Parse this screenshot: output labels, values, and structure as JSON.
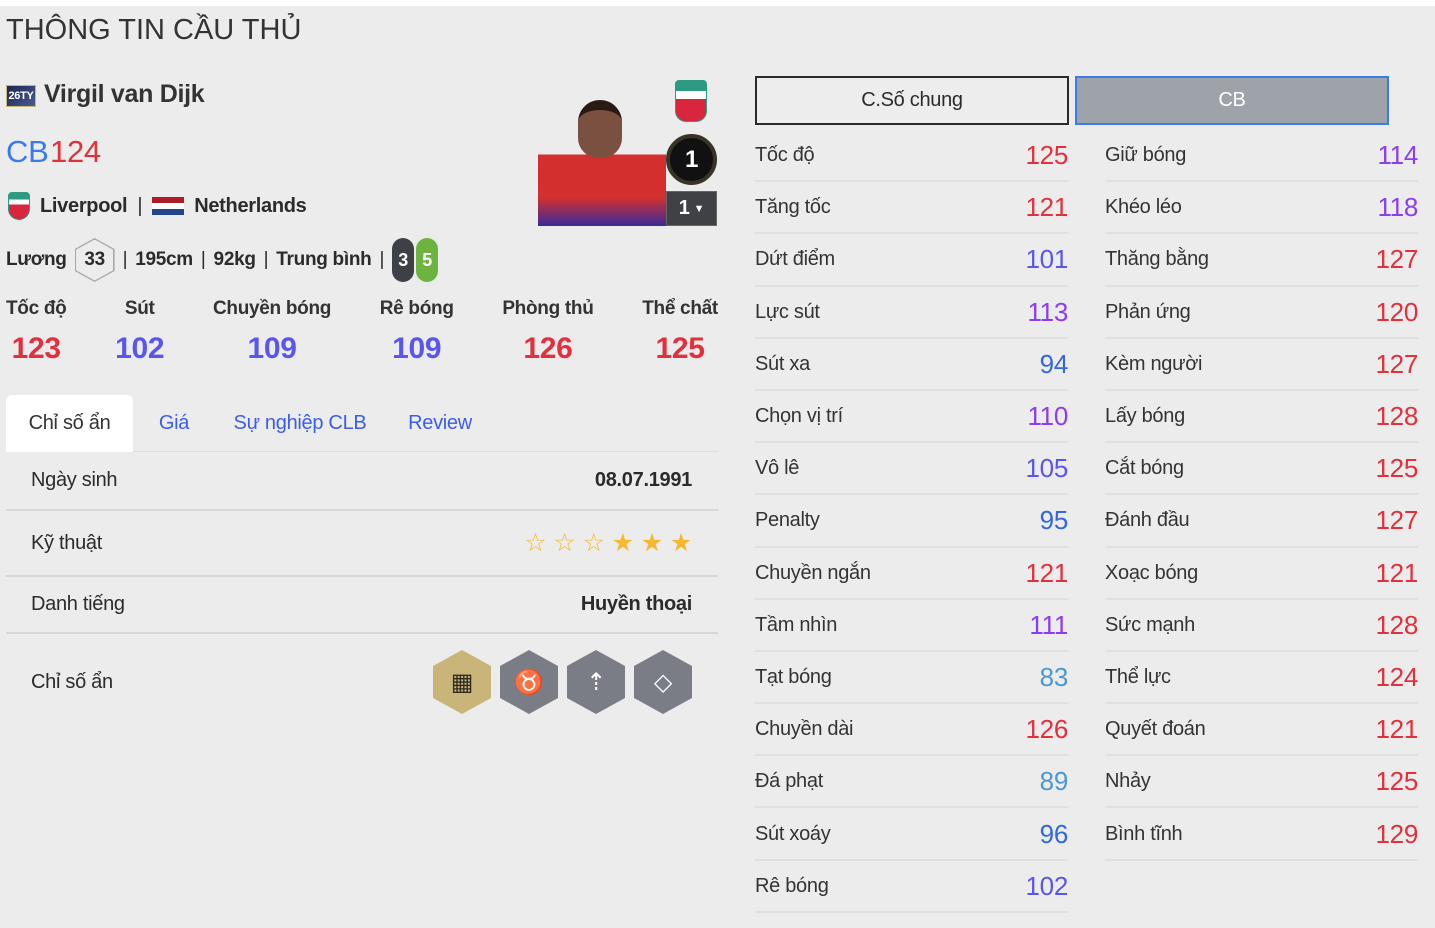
{
  "page_title": "THÔNG TIN CẦU THỦ",
  "player": {
    "season": "26TY",
    "name": "Virgil van Dijk",
    "position": "CB",
    "ovr": "124",
    "club": "Liverpool",
    "nation": "Netherlands",
    "sep": "|",
    "salary_label": "Lương",
    "salary": "33",
    "height": "195cm",
    "weight": "92kg",
    "body_type": "Trung bình",
    "left_foot": "3",
    "right_foot": "5",
    "upgrade_level": "1",
    "level_select": "1"
  },
  "summary": [
    {
      "label": "Tốc độ",
      "value": 123
    },
    {
      "label": "Sút",
      "value": 102
    },
    {
      "label": "Chuyền bóng",
      "value": 109
    },
    {
      "label": "Rê bóng",
      "value": 109
    },
    {
      "label": "Phòng thủ",
      "value": 126
    },
    {
      "label": "Thể chất",
      "value": 125
    }
  ],
  "tabs": [
    "Chỉ số ẩn",
    "Giá",
    "Sự nghiệp CLB",
    "Review"
  ],
  "info": {
    "birth_label": "Ngày sinh",
    "birth": "08.07.1991",
    "skill_label": "Kỹ thuật",
    "skill_stars": 3,
    "skill_max": 6,
    "rep_label": "Danh tiếng",
    "rep": "Huyền thoại",
    "traits_label": "Chỉ số ẩn",
    "traits": [
      {
        "icon": "brick-wall-icon",
        "color": "#c9b57a"
      },
      {
        "icon": "bull-icon",
        "color": "#7a7d85"
      },
      {
        "icon": "long-throw-icon",
        "color": "#7a7d85"
      },
      {
        "icon": "diamond-icon",
        "color": "#7a7d85"
      }
    ]
  },
  "stat_tabs": {
    "general": "C.Số chung",
    "position": "CB"
  },
  "stats_left": [
    {
      "label": "Tốc độ",
      "value": 125
    },
    {
      "label": "Tăng tốc",
      "value": 121
    },
    {
      "label": "Dứt điểm",
      "value": 101
    },
    {
      "label": "Lực sút",
      "value": 113
    },
    {
      "label": "Sút xa",
      "value": 94
    },
    {
      "label": "Chọn vị trí",
      "value": 110
    },
    {
      "label": "Vô lê",
      "value": 105
    },
    {
      "label": "Penalty",
      "value": 95
    },
    {
      "label": "Chuyền ngắn",
      "value": 121
    },
    {
      "label": "Tầm nhìn",
      "value": 111
    },
    {
      "label": "Tạt bóng",
      "value": 83
    },
    {
      "label": "Chuyền dài",
      "value": 126
    },
    {
      "label": "Đá phạt",
      "value": 89
    },
    {
      "label": "Sút xoáy",
      "value": 96
    },
    {
      "label": "Rê bóng",
      "value": 102
    }
  ],
  "stats_right": [
    {
      "label": "Giữ bóng",
      "value": 114
    },
    {
      "label": "Khéo léo",
      "value": 118
    },
    {
      "label": "Thăng bằng",
      "value": 127
    },
    {
      "label": "Phản ứng",
      "value": 120
    },
    {
      "label": "Kèm người",
      "value": 127
    },
    {
      "label": "Lấy bóng",
      "value": 128
    },
    {
      "label": "Cắt bóng",
      "value": 125
    },
    {
      "label": "Đánh đầu",
      "value": 127
    },
    {
      "label": "Xoạc bóng",
      "value": 121
    },
    {
      "label": "Sức mạnh",
      "value": 128
    },
    {
      "label": "Thể lực",
      "value": 124
    },
    {
      "label": "Quyết đoán",
      "value": 121
    },
    {
      "label": "Nhảy",
      "value": 125
    },
    {
      "label": "Bình tĩnh",
      "value": 129
    }
  ],
  "colors": {
    "tier120": "#e2303c",
    "tier110": "#8c3cf2",
    "tier100": "#5a55ee",
    "tier90": "#3466e0",
    "tier80": "#4b97d4",
    "accent": "#3b7ae8"
  }
}
